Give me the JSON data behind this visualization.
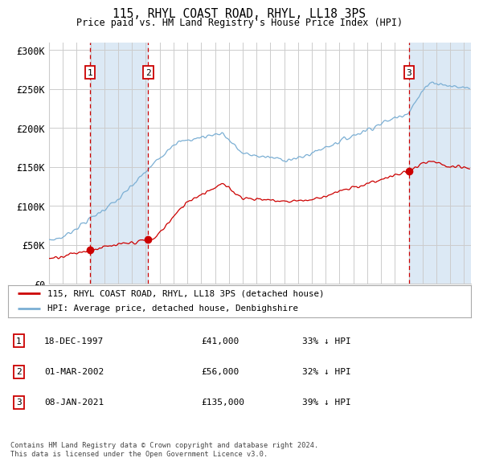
{
  "title": "115, RHYL COAST ROAD, RHYL, LL18 3PS",
  "subtitle": "Price paid vs. HM Land Registry's House Price Index (HPI)",
  "footer1": "Contains HM Land Registry data © Crown copyright and database right 2024.",
  "footer2": "This data is licensed under the Open Government Licence v3.0.",
  "legend_red": "115, RHYL COAST ROAD, RHYL, LL18 3PS (detached house)",
  "legend_blue": "HPI: Average price, detached house, Denbighshire",
  "transactions": [
    {
      "num": 1,
      "date": "18-DEC-1997",
      "price": 41000,
      "pct": "33%",
      "dir": "↓",
      "year": 1997.96
    },
    {
      "num": 2,
      "date": "01-MAR-2002",
      "price": 56000,
      "pct": "32%",
      "dir": "↓",
      "year": 2002.17
    },
    {
      "num": 3,
      "date": "08-JAN-2021",
      "price": 135000,
      "pct": "39%",
      "dir": "↓",
      "year": 2021.03
    }
  ],
  "ylim": [
    0,
    310000
  ],
  "xlim_start": 1995.0,
  "xlim_end": 2025.5,
  "red_color": "#cc0000",
  "blue_color": "#7bafd4",
  "shade_color": "#dce9f5",
  "grid_color": "#cccccc",
  "bg_color": "#ffffff",
  "plot_bg": "#ffffff",
  "yticks": [
    0,
    50000,
    100000,
    150000,
    200000,
    250000,
    300000
  ],
  "ytick_labels": [
    "£0",
    "£50K",
    "£100K",
    "£150K",
    "£200K",
    "£250K",
    "£300K"
  ]
}
